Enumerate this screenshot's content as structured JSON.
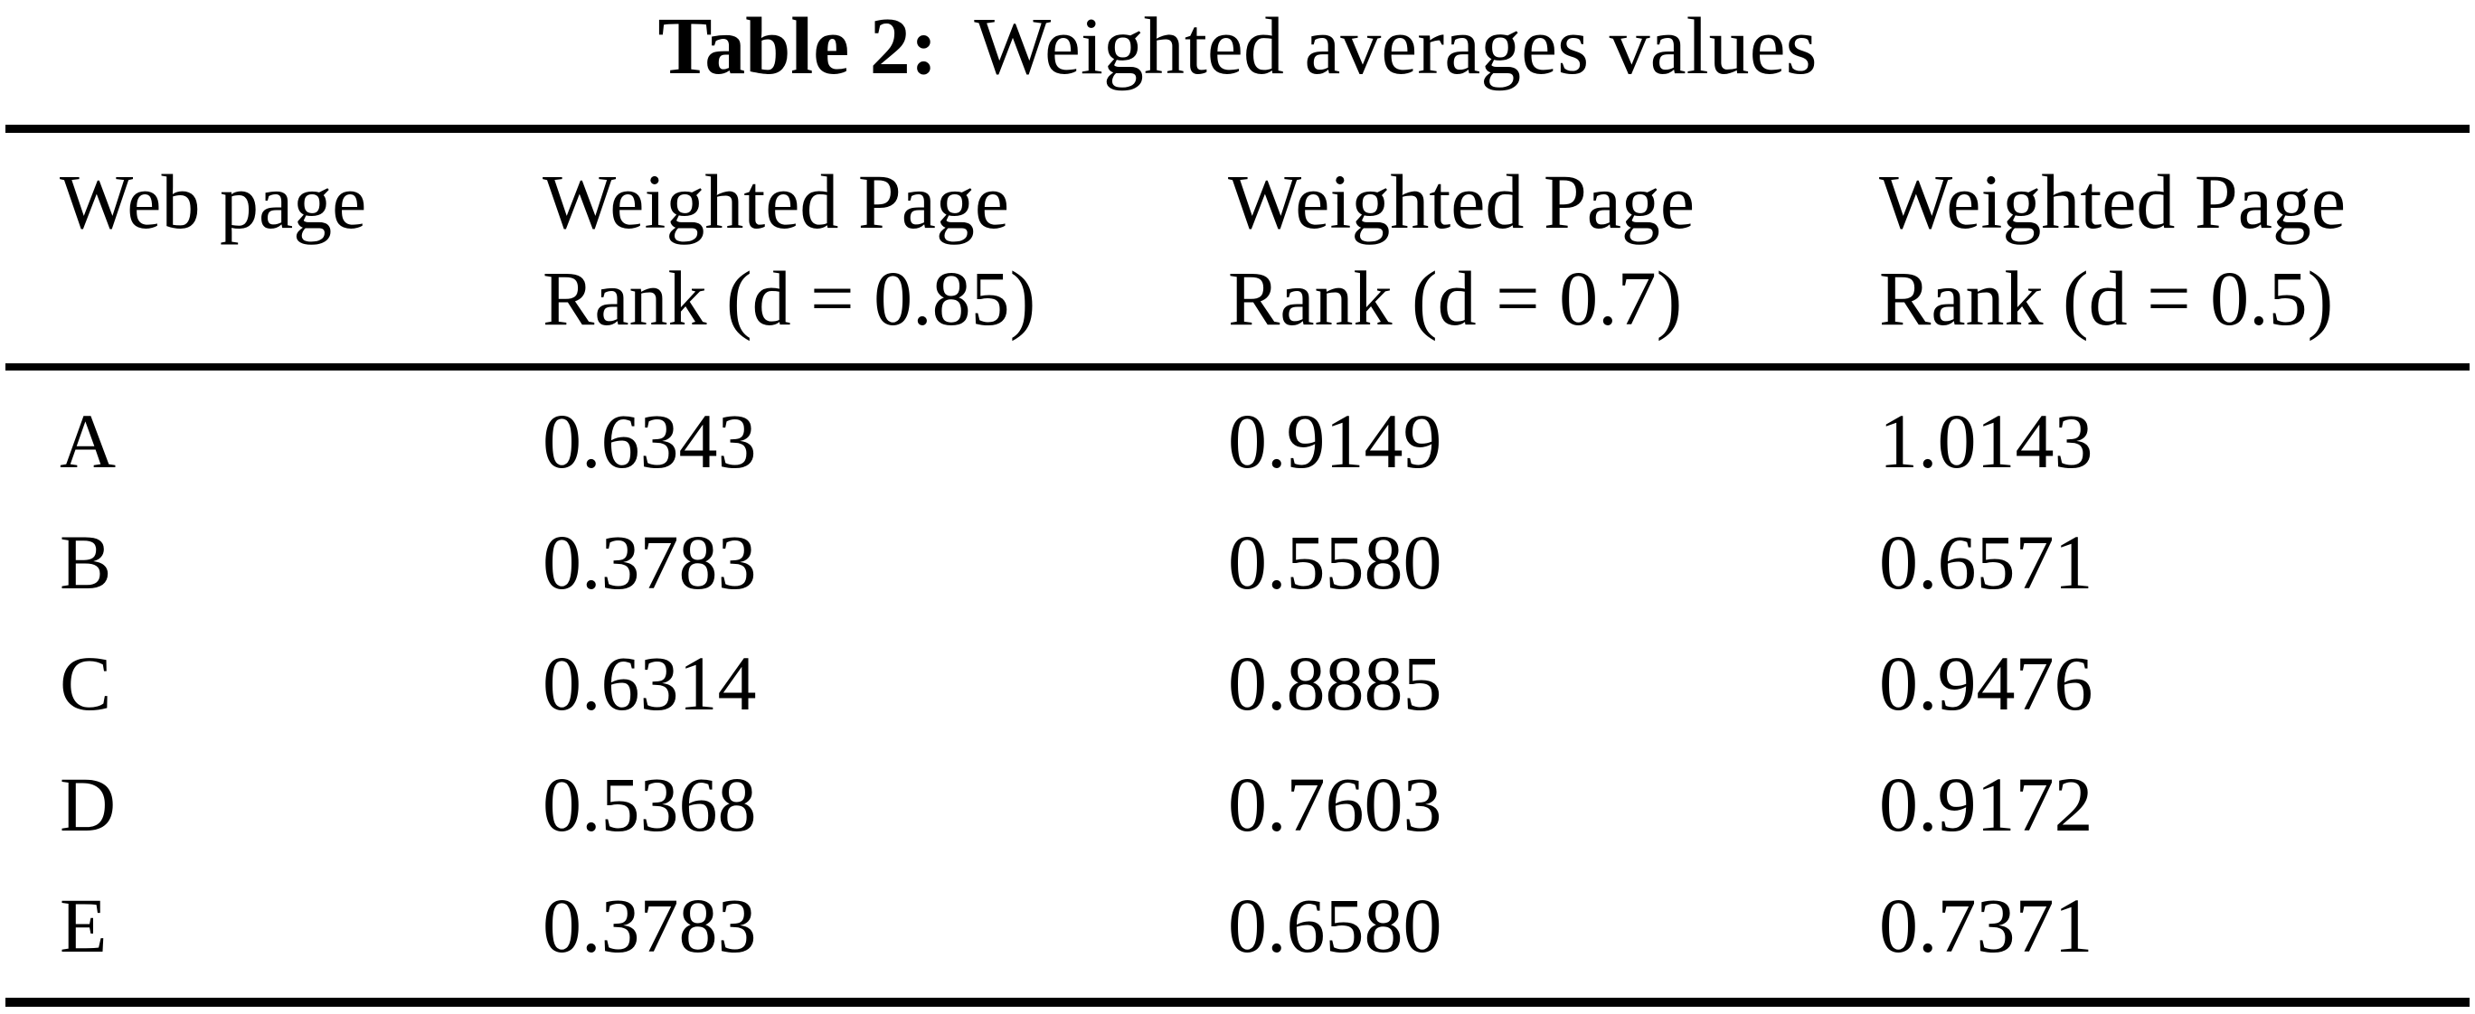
{
  "page": {
    "background": "#ffffff",
    "text_color": "#000000",
    "rule_color": "#000000"
  },
  "caption": {
    "label": "Table 2:",
    "title": "Weighted averages values"
  },
  "table": {
    "header": {
      "col0": {
        "line1": "Web page",
        "line2": ""
      },
      "col1": {
        "line1": "Weighted Page",
        "line2": "Rank (d = 0.85)"
      },
      "col2": {
        "line1": "Weighted Page",
        "line2": "Rank (d = 0.7)"
      },
      "col3": {
        "line1": "Weighted Page",
        "line2": "Rank (d = 0.5)"
      }
    },
    "rows": [
      {
        "page": "A",
        "wpr_d085": "0.6343",
        "wpr_d07": "0.9149",
        "wpr_d05": "1.0143"
      },
      {
        "page": "B",
        "wpr_d085": "0.3783",
        "wpr_d07": "0.5580",
        "wpr_d05": "0.6571"
      },
      {
        "page": "C",
        "wpr_d085": "0.6314",
        "wpr_d07": "0.8885",
        "wpr_d05": "0.9476"
      },
      {
        "page": "D",
        "wpr_d085": "0.5368",
        "wpr_d07": "0.7603",
        "wpr_d05": "0.9172"
      },
      {
        "page": "E",
        "wpr_d085": "0.3783",
        "wpr_d07": "0.6580",
        "wpr_d05": "0.7371"
      }
    ]
  }
}
